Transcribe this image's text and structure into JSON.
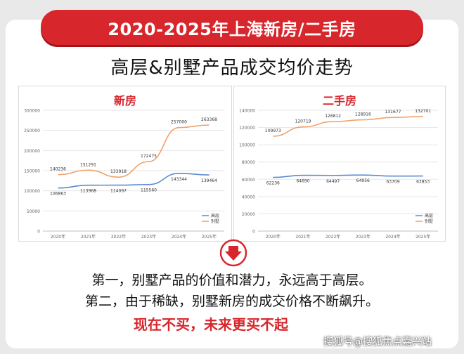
{
  "banner": {
    "title": "2020-2025年上海新房/二手房"
  },
  "subtitle": "高层&别墅产品成交均价走势",
  "chart_data": [
    {
      "type": "line",
      "title": "新房",
      "categories": [
        "2020年",
        "2021年",
        "2022年",
        "2023年",
        "2024年",
        "2025年"
      ],
      "ylim": [
        0,
        300000
      ],
      "yticks": [
        0,
        50000,
        100000,
        150000,
        200000,
        250000,
        300000
      ],
      "legend": "bottom-right",
      "grid": true,
      "series": [
        {
          "name": "高层",
          "color": "#5b8bd0",
          "values": [
            106863,
            113968,
            114097,
            115560,
            143344,
            139464
          ]
        },
        {
          "name": "别墅",
          "color": "#f0a36a",
          "values": [
            140236,
            151291,
            133918,
            172475,
            257000,
            263368
          ]
        }
      ]
    },
    {
      "type": "line",
      "title": "二手房",
      "categories": [
        "2020年",
        "2021年",
        "2022年",
        "2023年",
        "2024年",
        "2025年"
      ],
      "ylim": [
        0,
        140000
      ],
      "yticks": [
        0,
        20000,
        40000,
        60000,
        80000,
        100000,
        120000,
        140000
      ],
      "legend": "bottom-right",
      "grid": true,
      "series": [
        {
          "name": "高层",
          "color": "#5b8bd0",
          "values": [
            62236,
            64690,
            64497,
            64956,
            63709,
            63853
          ]
        },
        {
          "name": "别墅",
          "color": "#f0a36a",
          "values": [
            109973,
            120719,
            126812,
            128916,
            131677,
            132701
          ]
        }
      ]
    }
  ],
  "points": [
    "第一，别墅产品的价值和潜力，永远高于高层。",
    "第二，由于稀缺，别墅新房的成交价格不断飙升。"
  ],
  "slogan": "现在不买，未来更买不起",
  "watermark": "搜狐号@搜狐焦点嘉兴站"
}
